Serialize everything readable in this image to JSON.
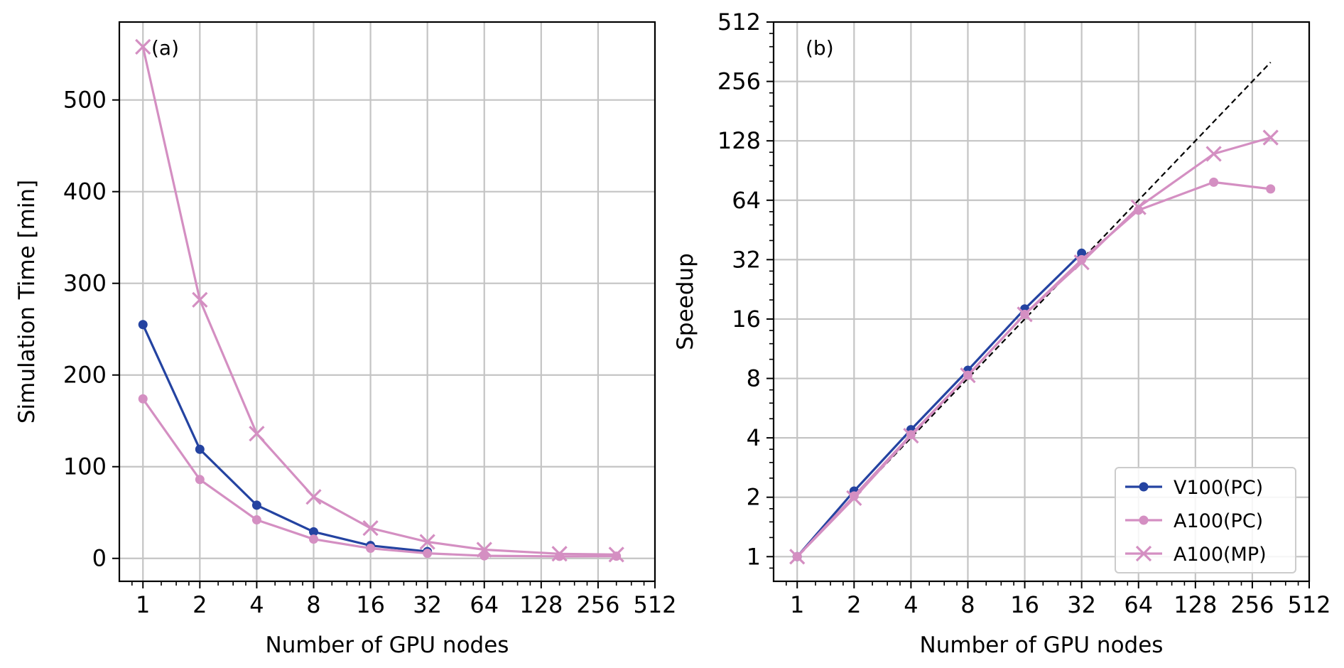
{
  "chart_data": [
    {
      "type": "line",
      "panel_label": "(a)",
      "xlabel": "Number of GPU nodes",
      "ylabel": "Simulation Time [min]",
      "x_scale": "log2",
      "xlim": [
        0.75,
        512
      ],
      "ylim": [
        -25,
        585
      ],
      "x_ticks": [
        1,
        2,
        4,
        8,
        16,
        32,
        64,
        128,
        256,
        512
      ],
      "x_tick_labels": [
        "1",
        "2",
        "4",
        "8",
        "16",
        "32",
        "64",
        "128",
        "256",
        "512"
      ],
      "y_ticks": [
        0,
        100,
        200,
        300,
        400,
        500
      ],
      "y_tick_labels": [
        "0",
        "100",
        "200",
        "300",
        "400",
        "500"
      ],
      "grid": true,
      "series": [
        {
          "name": "V100(PC)",
          "color": "#2443a1",
          "marker": "circle",
          "x": [
            1,
            2,
            4,
            8,
            16,
            32
          ],
          "y": [
            255,
            119,
            58,
            29,
            14,
            7.5
          ]
        },
        {
          "name": "A100(PC)",
          "color": "#d48fc2",
          "marker": "circle",
          "x": [
            1,
            2,
            4,
            8,
            16,
            32,
            64,
            160,
            320
          ],
          "y": [
            174,
            86,
            42,
            21,
            11,
            5.5,
            2.8,
            2.2,
            2.4
          ]
        },
        {
          "name": "A100(MP)",
          "color": "#d48fc2",
          "marker": "x",
          "x": [
            1,
            2,
            4,
            8,
            16,
            32,
            64,
            160,
            320
          ],
          "y": [
            558,
            282,
            136,
            67,
            33,
            18,
            9.5,
            5,
            4.2
          ]
        }
      ]
    },
    {
      "type": "line",
      "panel_label": "(b)",
      "xlabel": "Number of GPU nodes",
      "ylabel": "Speedup",
      "x_scale": "log2",
      "y_scale": "log2",
      "xlim": [
        0.75,
        512
      ],
      "ylim": [
        0.75,
        512
      ],
      "x_ticks": [
        1,
        2,
        4,
        8,
        16,
        32,
        64,
        128,
        256,
        512
      ],
      "x_tick_labels": [
        "1",
        "2",
        "4",
        "8",
        "16",
        "32",
        "64",
        "128",
        "256",
        "512"
      ],
      "y_ticks": [
        1,
        2,
        4,
        8,
        16,
        32,
        64,
        128,
        256,
        512
      ],
      "y_tick_labels": [
        "1",
        "2",
        "4",
        "8",
        "16",
        "32",
        "64",
        "128",
        "256",
        "512"
      ],
      "grid": true,
      "legend_position": "bottom-right",
      "ideal_line": {
        "x": [
          1,
          320
        ],
        "y": [
          1,
          320
        ],
        "style": "dashed",
        "color": "#000000"
      },
      "series": [
        {
          "name": "V100(PC)",
          "color": "#2443a1",
          "marker": "circle",
          "x": [
            1,
            2,
            4,
            8,
            16,
            32
          ],
          "y": [
            1,
            2.15,
            4.4,
            8.8,
            18,
            34.5
          ]
        },
        {
          "name": "A100(PC)",
          "color": "#d48fc2",
          "marker": "circle",
          "x": [
            1,
            2,
            4,
            8,
            16,
            32,
            64,
            160,
            320
          ],
          "y": [
            1,
            2.03,
            4.15,
            8.3,
            16.9,
            32,
            57,
            79,
            73
          ]
        },
        {
          "name": "A100(MP)",
          "color": "#d48fc2",
          "marker": "x",
          "x": [
            1,
            2,
            4,
            8,
            16,
            32,
            64,
            160,
            320
          ],
          "y": [
            1,
            1.98,
            4.1,
            8.3,
            16.9,
            31,
            59,
            110,
            133
          ]
        }
      ]
    }
  ]
}
